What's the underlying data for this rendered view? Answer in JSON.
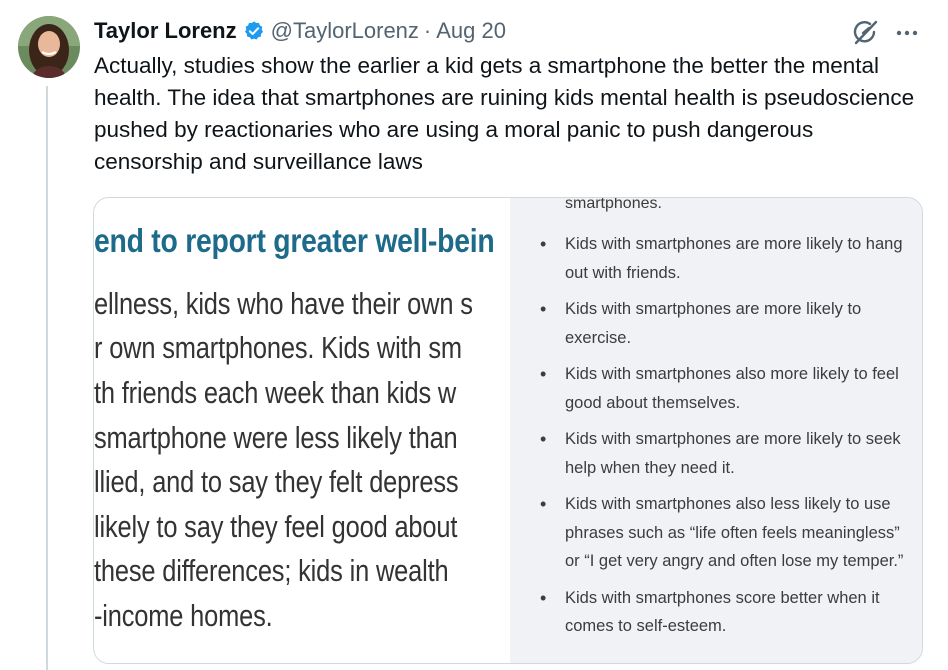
{
  "author": {
    "display_name": "Taylor Lorenz",
    "handle": "@TaylorLorenz",
    "separator": "·",
    "date": "Aug 20"
  },
  "tweet": {
    "text": "Actually, studies show the earlier a kid gets a smartphone the better the mental health. The idea that smartphones are ruining kids mental health is pseudoscience pushed by reactionaries who are using a moral panic to push dangerous censorship and surveillance laws"
  },
  "media": {
    "article": {
      "heading": "end to report greater well-bein",
      "lines": [
        "ellness, kids who have their own s",
        "r own smartphones. Kids with sm",
        "th friends each week than kids w",
        "smartphone were less likely than",
        "llied, and to say they felt depress",
        "likely to say they feel good about",
        "these differences; kids in wealth",
        "-income homes."
      ]
    },
    "summary": {
      "top_fragment": "smartphones.",
      "bullets": [
        "Kids with smartphones are more likely to hang out with friends.",
        "Kids with smartphones are more likely to exercise.",
        "Kids with smartphones also more likely to feel good about themselves.",
        "Kids with smartphones are more likely to seek help when they need it.",
        "Kids with smartphones also less likely to use phrases such as “life often feels meaningless” or “I get very angry and often lose my temper.”",
        "Kids with smartphones score better when it comes to self-esteem."
      ]
    }
  },
  "icons": {
    "verified": "verified-badge-icon",
    "grok": "grok-icon",
    "more": "more-icon"
  },
  "colors": {
    "verified_blue": "#1d9bf0",
    "article_heading": "#1d6a8a",
    "summary_background": "#f1f2f6"
  }
}
